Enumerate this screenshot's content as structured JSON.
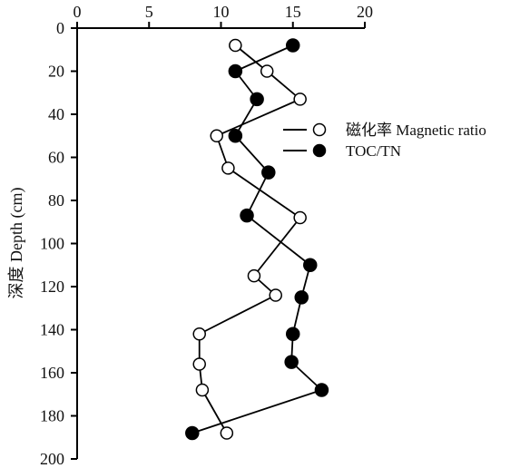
{
  "chart_data": {
    "type": "line",
    "orientation": "depth-profile",
    "x_axis": {
      "position": "top",
      "range": [
        0,
        20
      ],
      "ticks": [
        0,
        5,
        10,
        15,
        20
      ],
      "tick_labels": [
        "0",
        "5",
        "10",
        "15",
        "20"
      ],
      "label": ""
    },
    "y_axis": {
      "range": [
        0,
        200
      ],
      "inverted": true,
      "ticks": [
        0,
        20,
        40,
        60,
        80,
        100,
        120,
        140,
        160,
        180,
        200
      ],
      "tick_labels": [
        "0",
        "20",
        "40",
        "60",
        "80",
        "100",
        "120",
        "140",
        "160",
        "180",
        "200"
      ],
      "label": "深度 Depth (cm)"
    },
    "grid": false,
    "legend": {
      "placement": "right"
    },
    "series": [
      {
        "name": "磁化率 Magnetic ratio",
        "marker": "open-circle",
        "color": "#000000",
        "points": [
          {
            "x": 11.0,
            "y": 8
          },
          {
            "x": 13.2,
            "y": 20
          },
          {
            "x": 15.5,
            "y": 33
          },
          {
            "x": 9.7,
            "y": 50
          },
          {
            "x": 10.5,
            "y": 65
          },
          {
            "x": 15.5,
            "y": 88
          },
          {
            "x": 12.3,
            "y": 115
          },
          {
            "x": 13.8,
            "y": 124
          },
          {
            "x": 8.5,
            "y": 142
          },
          {
            "x": 8.5,
            "y": 156
          },
          {
            "x": 8.7,
            "y": 168
          },
          {
            "x": 10.4,
            "y": 188
          }
        ]
      },
      {
        "name": "TOC/TN",
        "marker": "filled-circle",
        "color": "#000000",
        "points": [
          {
            "x": 15.0,
            "y": 8
          },
          {
            "x": 11.0,
            "y": 20
          },
          {
            "x": 12.5,
            "y": 33
          },
          {
            "x": 11.0,
            "y": 50
          },
          {
            "x": 13.3,
            "y": 67
          },
          {
            "x": 11.8,
            "y": 87
          },
          {
            "x": 16.2,
            "y": 110
          },
          {
            "x": 15.6,
            "y": 125
          },
          {
            "x": 15.0,
            "y": 142
          },
          {
            "x": 14.9,
            "y": 155
          },
          {
            "x": 17.0,
            "y": 168
          },
          {
            "x": 8.0,
            "y": 188
          }
        ]
      }
    ]
  }
}
